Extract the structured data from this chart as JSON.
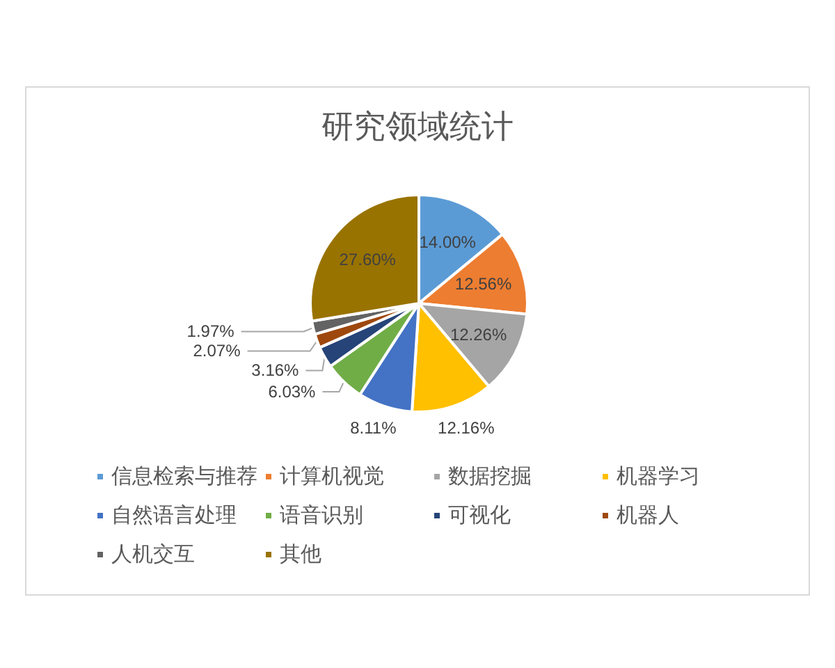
{
  "chart_data": {
    "type": "pie",
    "title": "研究领域统计",
    "categories": [
      "信息检索与推荐",
      "计算机视觉",
      "数据挖掘",
      "机器学习",
      "自然语言处理",
      "语音识别",
      "可视化",
      "机器人",
      "人机交互",
      "其他"
    ],
    "values": [
      14.0,
      12.56,
      12.26,
      12.16,
      8.11,
      6.03,
      3.16,
      2.07,
      1.97,
      27.6
    ],
    "value_labels": [
      "14.00%",
      "12.56%",
      "12.26%",
      "12.16%",
      "8.11%",
      "6.03%",
      "3.16%",
      "2.07%",
      "1.97%",
      "27.60%"
    ],
    "colors": [
      "#5b9bd5",
      "#ed7d31",
      "#a5a5a5",
      "#ffc000",
      "#4472c4",
      "#70ad47",
      "#264478",
      "#9e480e",
      "#636363",
      "#997300"
    ],
    "legend": "bottom"
  }
}
